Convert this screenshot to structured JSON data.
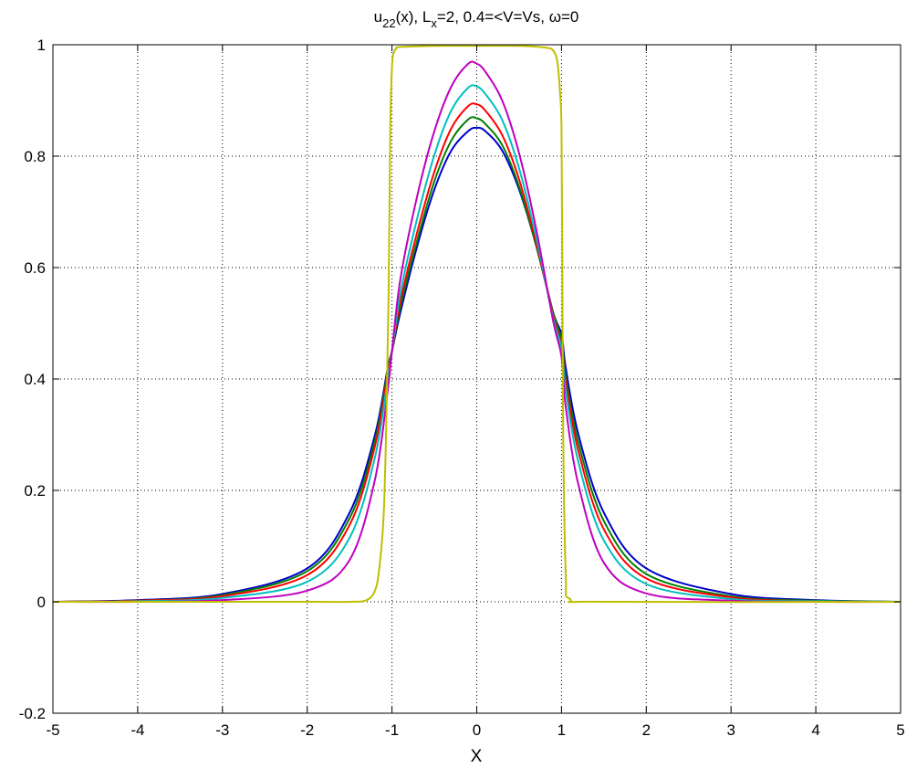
{
  "chart_data": {
    "type": "line",
    "title": {
      "u": "u",
      "u_sub": "22",
      "part2": "(x), L",
      "L_sub": "x",
      "part3": "=2,  0.4=<V=Vs, ",
      "omega": "ω",
      "part4": "=0"
    },
    "xlabel": "X",
    "ylabel": "",
    "xlim": [
      -5,
      5
    ],
    "ylim": [
      -0.2,
      1
    ],
    "xticks": [
      -5,
      -4,
      -3,
      -2,
      -1,
      0,
      1,
      2,
      3,
      4,
      5
    ],
    "yticks": [
      -0.2,
      0,
      0.2,
      0.4,
      0.6,
      0.8,
      1
    ],
    "grid": true,
    "series": [
      {
        "color": "#0000cc",
        "x": [
          -5,
          -4,
          -3,
          -2,
          -1.5,
          -1.2,
          -1.05,
          -1,
          -0.9,
          -0.7,
          -0.5,
          -0.3,
          -0.1,
          0,
          0.1,
          0.3,
          0.5,
          0.7,
          0.9,
          1,
          1.05,
          1.2,
          1.5,
          2,
          3,
          4,
          5
        ],
        "y": [
          0.0,
          0.003,
          0.014,
          0.06,
          0.16,
          0.3,
          0.42,
          0.45,
          0.52,
          0.64,
          0.74,
          0.81,
          0.845,
          0.851,
          0.845,
          0.81,
          0.74,
          0.64,
          0.52,
          0.48,
          0.42,
          0.3,
          0.16,
          0.06,
          0.014,
          0.003,
          0.0
        ]
      },
      {
        "color": "#008000",
        "x": [
          -5,
          -4,
          -3,
          -2,
          -1.5,
          -1.2,
          -1.05,
          -1,
          -0.9,
          -0.7,
          -0.5,
          -0.3,
          -0.1,
          0,
          0.1,
          0.3,
          0.5,
          0.7,
          0.9,
          1,
          1.05,
          1.2,
          1.5,
          2,
          3,
          4,
          5
        ],
        "y": [
          0.0,
          0.002,
          0.012,
          0.055,
          0.15,
          0.29,
          0.415,
          0.45,
          0.53,
          0.65,
          0.755,
          0.828,
          0.866,
          0.868,
          0.858,
          0.82,
          0.745,
          0.64,
          0.52,
          0.47,
          0.405,
          0.285,
          0.145,
          0.05,
          0.01,
          0.002,
          0.0
        ]
      },
      {
        "color": "#ff0000",
        "x": [
          -5,
          -4,
          -3,
          -2,
          -1.5,
          -1.2,
          -1.05,
          -1,
          -0.9,
          -0.7,
          -0.5,
          -0.3,
          -0.1,
          0,
          0.1,
          0.3,
          0.5,
          0.7,
          0.9,
          1,
          1.05,
          1.2,
          1.5,
          2,
          3,
          4,
          5
        ],
        "y": [
          0.0,
          0.002,
          0.01,
          0.048,
          0.138,
          0.28,
          0.41,
          0.45,
          0.54,
          0.665,
          0.772,
          0.85,
          0.89,
          0.893,
          0.882,
          0.838,
          0.758,
          0.645,
          0.515,
          0.46,
          0.395,
          0.27,
          0.13,
          0.042,
          0.008,
          0.001,
          0.0
        ]
      },
      {
        "color": "#00bfbf",
        "x": [
          -5,
          -4,
          -3,
          -2,
          -1.5,
          -1.2,
          -1.05,
          -1,
          -0.9,
          -0.7,
          -0.5,
          -0.3,
          -0.1,
          0,
          0.1,
          0.3,
          0.5,
          0.7,
          0.9,
          1,
          1.05,
          1.2,
          1.5,
          2,
          3,
          4,
          5
        ],
        "y": [
          0.0,
          0.001,
          0.007,
          0.036,
          0.115,
          0.26,
          0.4,
          0.45,
          0.555,
          0.69,
          0.802,
          0.882,
          0.923,
          0.925,
          0.912,
          0.865,
          0.778,
          0.655,
          0.51,
          0.455,
          0.38,
          0.25,
          0.11,
          0.032,
          0.005,
          0.001,
          0.0
        ]
      },
      {
        "color": "#bf00bf",
        "x": [
          -5,
          -4,
          -3,
          -2,
          -1.5,
          -1.2,
          -1.05,
          -1,
          -0.9,
          -0.7,
          -0.5,
          -0.3,
          -0.1,
          0,
          0.1,
          0.3,
          0.5,
          0.7,
          0.9,
          1,
          1.05,
          1.2,
          1.5,
          2,
          3,
          4,
          5
        ],
        "y": [
          0.0,
          0.0,
          0.003,
          0.02,
          0.075,
          0.22,
          0.38,
          0.45,
          0.58,
          0.73,
          0.845,
          0.925,
          0.966,
          0.966,
          0.952,
          0.9,
          0.805,
          0.67,
          0.505,
          0.44,
          0.35,
          0.21,
          0.07,
          0.015,
          0.002,
          0.0,
          0.0
        ]
      },
      {
        "color": "#bfbf00",
        "x": [
          -5,
          -2,
          -1.5,
          -1.3,
          -1.2,
          -1.15,
          -1.1,
          -1.07,
          -1.04,
          -1.02,
          -1,
          -0.98,
          -0.95,
          -0.9,
          -0.5,
          0,
          0.5,
          0.8,
          0.9,
          0.95,
          0.98,
          1,
          1.01,
          1.02,
          1.05,
          1.1,
          1.5,
          5
        ],
        "y": [
          0.0,
          0.0,
          0.0,
          0.003,
          0.02,
          0.06,
          0.15,
          0.3,
          0.55,
          0.85,
          0.96,
          0.985,
          0.993,
          0.996,
          0.998,
          0.998,
          0.998,
          0.995,
          0.99,
          0.97,
          0.92,
          0.85,
          0.6,
          0.3,
          0.05,
          0.005,
          0.0,
          0.0
        ]
      }
    ]
  }
}
